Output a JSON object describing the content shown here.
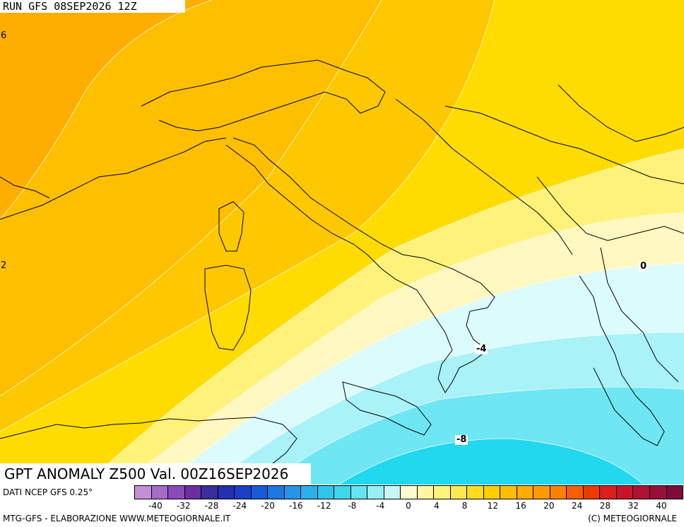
{
  "header": {
    "run_label": "RUN GFS 08SEP2026 12Z"
  },
  "title": {
    "text": "GPT ANOMALY Z500 Val. 00Z16SEP2026"
  },
  "source": {
    "text": "DATI NCEP GFS 0.25°"
  },
  "footer": {
    "left": "MTG-GFS - ELABORAZIONE WWW.METEOGIORNALE.IT",
    "right": "(C) METEOGIORNALE"
  },
  "contour_labels": {
    "zero": "0",
    "minus4": "-4",
    "minus8": "-8"
  },
  "edge_labels": {
    "top_left": "6",
    "mid_left": "2"
  },
  "legend": {
    "ticks": [
      "-40",
      "-32",
      "-28",
      "-24",
      "-20",
      "-16",
      "-12",
      "-8",
      "-4",
      "0",
      "4",
      "8",
      "12",
      "16",
      "20",
      "24",
      "28",
      "32",
      "40"
    ],
    "colors": [
      "#c58fd6",
      "#a36cc7",
      "#8a4ab8",
      "#6a2fa0",
      "#3a2d9c",
      "#2430b0",
      "#1a40c8",
      "#1a5ad8",
      "#1e78e0",
      "#2596e6",
      "#2ab0ea",
      "#30c6ec",
      "#3fd6ee",
      "#66e4f2",
      "#97eef6",
      "#c8f7fa",
      "#fffbd0",
      "#fff7a3",
      "#fff27a",
      "#ffe84d",
      "#ffdb1f",
      "#ffcd00",
      "#ffbd00",
      "#ffab00",
      "#ff9a00",
      "#ff8000",
      "#f85d00",
      "#ec3a00",
      "#dc1e1e",
      "#c8142a",
      "#b01233",
      "#981038",
      "#800a3a"
    ]
  },
  "map_colors": {
    "anomaly_pos_6": "#fdae00",
    "anomaly_pos_4": "#fdbf00",
    "anomaly_pos_2": "#fed200",
    "anomaly_pos_1": "#ffe400",
    "anomaly_0": "#fff7a8",
    "anomaly_neg_2": "#dcfbfd",
    "anomaly_neg_4": "#a8f2f8",
    "anomaly_neg_6": "#6fe6f4",
    "anomaly_neg_8": "#22d8ef"
  }
}
